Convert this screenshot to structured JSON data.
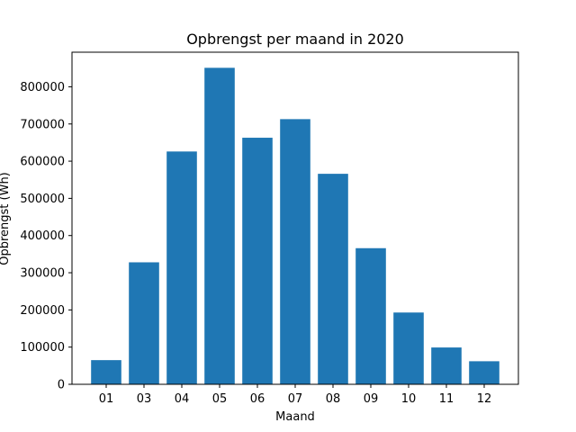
{
  "chart_data": {
    "type": "bar",
    "title": "Opbrengst per maand in 2020",
    "xlabel": "Maand",
    "ylabel": "Opbrengst (Wh)",
    "categories": [
      "01",
      "03",
      "04",
      "05",
      "06",
      "07",
      "08",
      "09",
      "10",
      "11",
      "12"
    ],
    "values": [
      65000,
      328000,
      626000,
      851000,
      663000,
      713000,
      566000,
      366000,
      193000,
      99000,
      62000
    ],
    "ylim": [
      0,
      893000
    ],
    "yticks": [
      0,
      100000,
      200000,
      300000,
      400000,
      500000,
      600000,
      700000,
      800000
    ],
    "ytick_labels": [
      "0",
      "100000",
      "200000",
      "300000",
      "400000",
      "500000",
      "600000",
      "700000",
      "800000"
    ],
    "grid": false,
    "bar_color": "#1f77b4"
  }
}
